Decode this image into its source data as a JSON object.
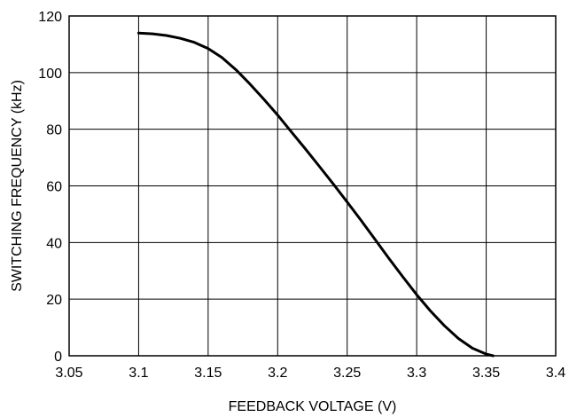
{
  "chart_data": {
    "type": "line",
    "title": "",
    "xlabel": "FEEDBACK VOLTAGE (V)",
    "ylabel": "SWITCHING FREQUENCY (kHz)",
    "xlim": [
      3.05,
      3.4
    ],
    "ylim": [
      0,
      120
    ],
    "xticks": [
      "3.05",
      "3.1",
      "3.15",
      "3.2",
      "3.25",
      "3.3",
      "3.35",
      "3.4"
    ],
    "yticks": [
      "0",
      "20",
      "40",
      "60",
      "80",
      "100",
      "120"
    ],
    "grid": true,
    "series": [
      {
        "x": [
          3.1,
          3.11,
          3.12,
          3.13,
          3.14,
          3.15,
          3.16,
          3.17,
          3.18,
          3.19,
          3.2,
          3.21,
          3.22,
          3.23,
          3.24,
          3.25,
          3.26,
          3.27,
          3.28,
          3.29,
          3.3,
          3.31,
          3.32,
          3.33,
          3.34,
          3.35,
          3.355
        ],
        "y": [
          114,
          113.7,
          113.1,
          112.1,
          110.7,
          108.5,
          105.3,
          101,
          96,
          90.6,
          85,
          79,
          73,
          66.9,
          60.7,
          54.3,
          47.8,
          41.1,
          34.4,
          27.9,
          21.6,
          15.8,
          10.6,
          6.1,
          2.7,
          0.6,
          0
        ]
      }
    ]
  }
}
